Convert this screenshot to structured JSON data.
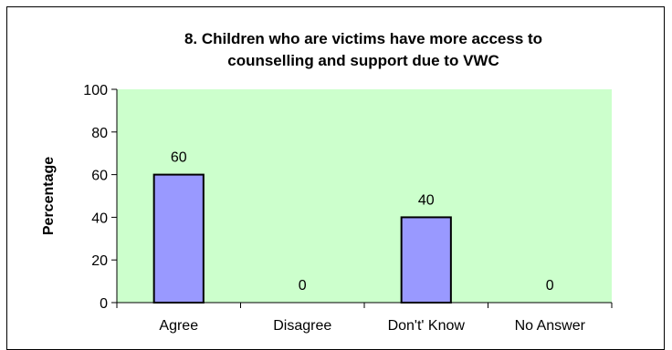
{
  "chart_data": {
    "type": "bar",
    "title_lines": [
      "8. Children who are victims have more access to",
      "counselling and support due to VWC"
    ],
    "xlabel": "",
    "ylabel": "Percentage",
    "categories": [
      "Agree",
      "Disagree",
      "Don't' Know",
      "No Answer"
    ],
    "values": [
      60,
      0,
      40,
      0
    ],
    "data_labels": [
      "60",
      "0",
      "40",
      "0"
    ],
    "ylim": [
      0,
      100
    ],
    "yticks": [
      "0",
      "20",
      "40",
      "60",
      "80",
      "100"
    ],
    "grid": false,
    "legend": "none"
  },
  "colors": {
    "plot_background": "#ccffcc",
    "bar_fill": "#9999ff",
    "bar_stroke": "#000000",
    "frame": "#000000"
  }
}
